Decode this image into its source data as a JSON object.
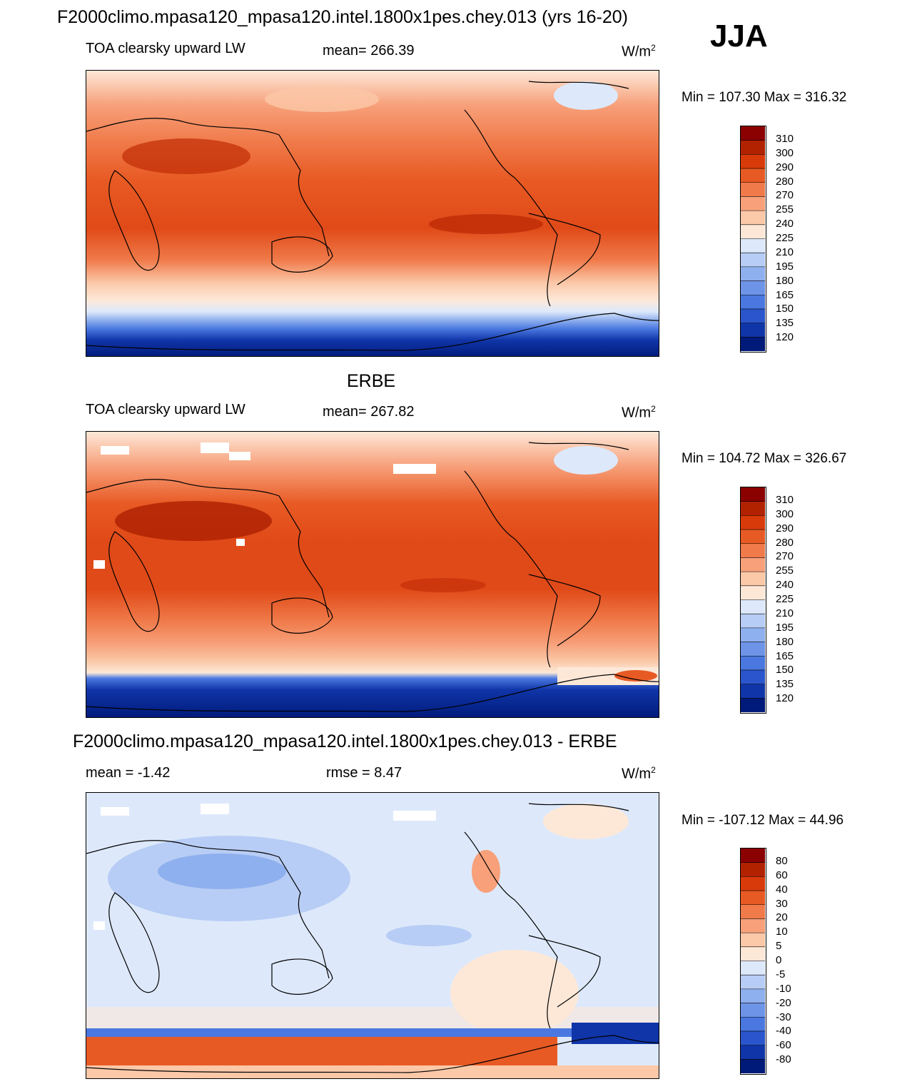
{
  "title": "F2000climo.mpasa120_mpasa120.intel.1800x1pes.chey.013 (yrs 16-20)",
  "season": "JJA",
  "panels": [
    {
      "id": "model",
      "heading": "",
      "left_label": "TOA clearsky upward LW",
      "center_label": "mean= 266.39",
      "units_base": "W/m",
      "units_sup": "2",
      "minmax": "Min = 107.30 Max = 316.32"
    },
    {
      "id": "obs",
      "heading": "ERBE",
      "left_label": "TOA clearsky upward LW",
      "center_label": "mean= 267.82",
      "units_base": "W/m",
      "units_sup": "2",
      "minmax": "Min = 104.72 Max = 326.67"
    },
    {
      "id": "diff",
      "heading": "F2000climo.mpasa120_mpasa120.intel.1800x1pes.chey.013 - ERBE",
      "left_label": "mean =  -1.42",
      "center_label": "rmse =   8.47",
      "units_base": "W/m",
      "units_sup": "2",
      "minmax": "Min = -107.12 Max =  44.96"
    }
  ],
  "colorbars": {
    "field": {
      "labels": [
        "310",
        "300",
        "290",
        "280",
        "270",
        "255",
        "240",
        "225",
        "210",
        "195",
        "180",
        "165",
        "150",
        "135",
        "120"
      ],
      "colors": [
        "#8b0000",
        "#b22200",
        "#d83a0a",
        "#e85a24",
        "#f07a4a",
        "#f7a07a",
        "#fbc8a8",
        "#fde8d8",
        "#dde9fb",
        "#b8cdf5",
        "#8fb0ee",
        "#6e94e8",
        "#4a78e0",
        "#2a55cc",
        "#1035a8",
        "#001a7a"
      ]
    },
    "diff": {
      "labels": [
        "80",
        "60",
        "40",
        "30",
        "20",
        "10",
        "5",
        "0",
        "-5",
        "-10",
        "-20",
        "-30",
        "-40",
        "-60",
        "-80"
      ],
      "colors": [
        "#8b0000",
        "#b22200",
        "#d83a0a",
        "#e85a24",
        "#f07a4a",
        "#f7a07a",
        "#fbc8a8",
        "#fde8d8",
        "#dde9fb",
        "#b8cdf5",
        "#8fb0ee",
        "#6e94e8",
        "#4a78e0",
        "#2a55cc",
        "#1035a8",
        "#001a7a"
      ]
    }
  }
}
